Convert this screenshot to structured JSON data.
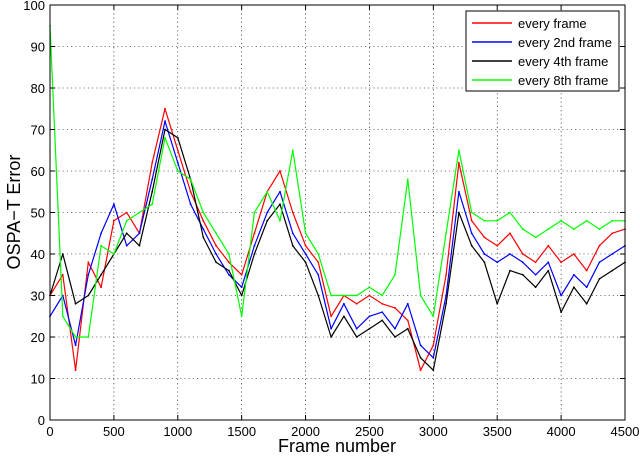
{
  "chart_data": {
    "type": "line",
    "title": "",
    "xlabel": "Frame number",
    "ylabel": "OSPA−T Error",
    "xlim": [
      0,
      4500
    ],
    "ylim": [
      0,
      100
    ],
    "xticks": [
      0,
      500,
      1000,
      1500,
      2000,
      2500,
      3000,
      3500,
      4000,
      4500
    ],
    "yticks": [
      0,
      10,
      20,
      30,
      40,
      50,
      60,
      70,
      80,
      90,
      100
    ],
    "grid": true,
    "legend_position": "top-right",
    "x": [
      0,
      100,
      200,
      300,
      400,
      500,
      600,
      700,
      800,
      900,
      1000,
      1100,
      1200,
      1300,
      1400,
      1500,
      1600,
      1700,
      1800,
      1900,
      2000,
      2100,
      2200,
      2300,
      2400,
      2500,
      2600,
      2700,
      2800,
      2900,
      3000,
      3100,
      3200,
      3300,
      3400,
      3500,
      3600,
      3700,
      3800,
      3900,
      4000,
      4100,
      4200,
      4300,
      4400,
      4500
    ],
    "series": [
      {
        "name": "every frame",
        "color": "#ff0000",
        "values": [
          30,
          35,
          12,
          38,
          32,
          48,
          50,
          45,
          62,
          75,
          65,
          55,
          48,
          42,
          38,
          35,
          45,
          55,
          60,
          50,
          42,
          38,
          25,
          30,
          28,
          30,
          28,
          27,
          24,
          12,
          18,
          35,
          62,
          48,
          44,
          42,
          45,
          40,
          38,
          42,
          38,
          40,
          36,
          42,
          45,
          46
        ]
      },
      {
        "name": "every 2nd frame",
        "color": "#0000ff",
        "values": [
          25,
          30,
          18,
          35,
          45,
          52,
          42,
          45,
          58,
          72,
          62,
          52,
          46,
          40,
          35,
          32,
          42,
          50,
          55,
          45,
          40,
          35,
          22,
          28,
          22,
          25,
          26,
          22,
          28,
          18,
          15,
          30,
          55,
          45,
          40,
          38,
          40,
          38,
          35,
          38,
          30,
          35,
          32,
          38,
          40,
          42
        ]
      },
      {
        "name": "every 4th frame",
        "color": "#000000",
        "values": [
          30,
          40,
          28,
          30,
          35,
          40,
          45,
          42,
          55,
          70,
          68,
          58,
          44,
          38,
          36,
          30,
          40,
          48,
          52,
          42,
          38,
          30,
          20,
          25,
          20,
          22,
          24,
          20,
          22,
          15,
          12,
          28,
          50,
          42,
          38,
          28,
          36,
          35,
          32,
          36,
          26,
          32,
          28,
          34,
          36,
          38
        ]
      },
      {
        "name": "every 8th frame",
        "color": "#00ff00",
        "values": [
          95,
          25,
          20,
          20,
          42,
          40,
          48,
          50,
          52,
          68,
          60,
          58,
          50,
          45,
          40,
          25,
          50,
          55,
          48,
          65,
          45,
          40,
          30,
          30,
          30,
          32,
          30,
          35,
          58,
          30,
          25,
          45,
          65,
          50,
          48,
          48,
          50,
          46,
          44,
          46,
          48,
          46,
          48,
          46,
          48,
          48
        ]
      }
    ]
  }
}
